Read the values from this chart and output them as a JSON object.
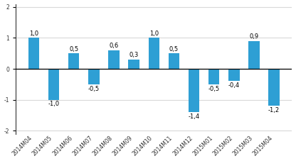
{
  "categories": [
    "2014M04",
    "2014M05",
    "2014M06",
    "2014M07",
    "2014M08",
    "2014M09",
    "2014M10",
    "2014M11",
    "2014M12",
    "2015M01",
    "2015M02",
    "2015M03",
    "2015M04"
  ],
  "values": [
    1.0,
    -1.0,
    0.5,
    -0.5,
    0.6,
    0.3,
    1.0,
    0.5,
    -1.4,
    -0.5,
    -0.4,
    0.9,
    -1.2
  ],
  "bar_color": "#2e9fd4",
  "ylim": [
    -2.1,
    2.1
  ],
  "yticks": [
    -2,
    -1,
    0,
    1,
    2
  ],
  "background_color": "#ffffff",
  "grid_color": "#d9d9d9",
  "label_fontsize": 5.5,
  "value_fontsize": 6.0,
  "bar_width": 0.55
}
